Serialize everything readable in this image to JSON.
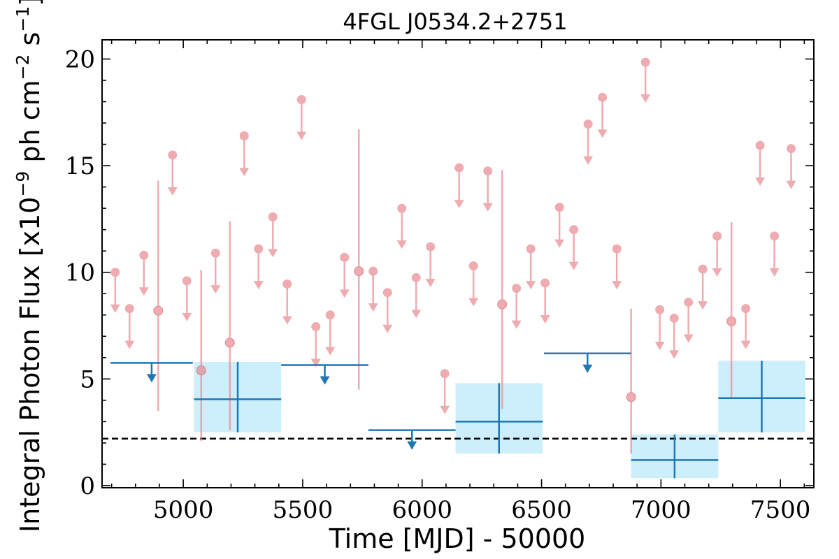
{
  "chart_data": {
    "type": "scatter",
    "title": "4FGL J0534.2+2751",
    "xlabel": "Time [MJD] - 50000",
    "ylabel_main": "Integral Photon Flux [x10",
    "ylabel_exp1": "−9",
    "ylabel_mid": " ph cm",
    "ylabel_exp2": "−2",
    "ylabel_mid2": " s",
    "ylabel_exp3": "−1",
    "ylabel_end": "]",
    "xlim": [
      4660,
      7640
    ],
    "ylim": [
      -0.1,
      20.9
    ],
    "xticks_major": [
      5000,
      5500,
      6000,
      6500,
      7000,
      7500
    ],
    "xtick_labels": [
      "5000",
      "5500",
      "6000",
      "6500",
      "7000",
      "7500"
    ],
    "yticks_major": [
      0,
      5,
      10,
      15,
      20
    ],
    "ytick_labels": [
      "0",
      "5",
      "10",
      "15",
      "20"
    ],
    "minor_tick_step_x": 100,
    "minor_tick_step_y": 1,
    "grid": false,
    "reference_line": {
      "y": 2.2,
      "style": "dashed",
      "color": "#000000"
    },
    "colors": {
      "short_bins": "#e8898f",
      "long_bins": "#1f77b4",
      "long_band": "#cdeefb"
    },
    "short_bins": {
      "upper_limits": [
        {
          "x": 4715,
          "y": 10.0
        },
        {
          "x": 4775,
          "y": 8.3
        },
        {
          "x": 4835,
          "y": 10.8
        },
        {
          "x": 4955,
          "y": 15.5
        },
        {
          "x": 5015,
          "y": 9.6
        },
        {
          "x": 5135,
          "y": 10.9
        },
        {
          "x": 5255,
          "y": 16.4
        },
        {
          "x": 5315,
          "y": 11.1
        },
        {
          "x": 5375,
          "y": 12.6
        },
        {
          "x": 5435,
          "y": 9.45
        },
        {
          "x": 5495,
          "y": 18.1
        },
        {
          "x": 5555,
          "y": 7.45
        },
        {
          "x": 5615,
          "y": 8.0
        },
        {
          "x": 5675,
          "y": 10.7
        },
        {
          "x": 5795,
          "y": 10.05
        },
        {
          "x": 5855,
          "y": 9.05
        },
        {
          "x": 5915,
          "y": 13.0
        },
        {
          "x": 5975,
          "y": 9.75
        },
        {
          "x": 6035,
          "y": 11.2
        },
        {
          "x": 6095,
          "y": 5.25
        },
        {
          "x": 6155,
          "y": 14.9
        },
        {
          "x": 6215,
          "y": 10.3
        },
        {
          "x": 6275,
          "y": 14.75
        },
        {
          "x": 6395,
          "y": 9.25
        },
        {
          "x": 6455,
          "y": 11.1
        },
        {
          "x": 6515,
          "y": 9.5
        },
        {
          "x": 6575,
          "y": 13.05
        },
        {
          "x": 6635,
          "y": 12.0
        },
        {
          "x": 6695,
          "y": 16.95
        },
        {
          "x": 6755,
          "y": 18.2
        },
        {
          "x": 6815,
          "y": 11.1
        },
        {
          "x": 6935,
          "y": 19.85
        },
        {
          "x": 6995,
          "y": 8.25
        },
        {
          "x": 7055,
          "y": 7.85
        },
        {
          "x": 7115,
          "y": 8.6
        },
        {
          "x": 7175,
          "y": 10.15
        },
        {
          "x": 7235,
          "y": 11.7
        },
        {
          "x": 7355,
          "y": 8.3
        },
        {
          "x": 7415,
          "y": 15.95
        },
        {
          "x": 7475,
          "y": 11.7
        },
        {
          "x": 7545,
          "y": 15.8
        }
      ],
      "detections": [
        {
          "x": 4895,
          "y": 8.2,
          "ylo": 3.5,
          "yhi": 14.3
        },
        {
          "x": 5075,
          "y": 5.4,
          "ylo": 2.1,
          "yhi": 10.1
        },
        {
          "x": 5195,
          "y": 6.7,
          "ylo": 2.6,
          "yhi": 12.4
        },
        {
          "x": 5735,
          "y": 10.05,
          "ylo": 4.5,
          "yhi": 16.7
        },
        {
          "x": 6335,
          "y": 8.5,
          "ylo": 3.6,
          "yhi": 14.8
        },
        {
          "x": 6875,
          "y": 4.15,
          "ylo": 1.5,
          "yhi": 8.3
        },
        {
          "x": 7295,
          "y": 7.7,
          "ylo": 4.1,
          "yhi": 12.35
        }
      ]
    },
    "long_bins": {
      "upper_limits": [
        {
          "x0": 4695,
          "x1": 5040,
          "y": 5.75
        },
        {
          "x0": 5410,
          "x1": 5775,
          "y": 5.65
        },
        {
          "x0": 5775,
          "x1": 6140,
          "y": 2.6
        },
        {
          "x0": 6510,
          "x1": 6875,
          "y": 6.2
        }
      ],
      "detections": [
        {
          "x0": 5045,
          "x1": 5410,
          "xc": 5228,
          "y": 4.05,
          "ylo": 2.5,
          "yhi": 5.8
        },
        {
          "x0": 6140,
          "x1": 6505,
          "xc": 6322,
          "y": 3.0,
          "ylo": 1.5,
          "yhi": 4.8
        },
        {
          "x0": 6875,
          "x1": 7240,
          "xc": 7057,
          "y": 1.2,
          "ylo": 0.35,
          "yhi": 2.4
        },
        {
          "x0": 7240,
          "x1": 7605,
          "xc": 7422,
          "y": 4.1,
          "ylo": 2.5,
          "yhi": 5.85
        }
      ]
    }
  }
}
